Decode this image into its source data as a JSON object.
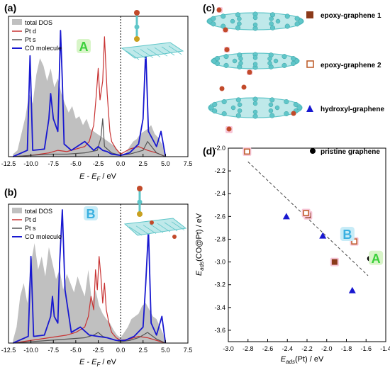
{
  "chart_data": [
    {
      "type": "area",
      "panel": "(a)",
      "xlabel_main": "E - E",
      "xlabel_sub": "F",
      "xlabel_unit": " / eV",
      "xlim": [
        -12.5,
        7.5
      ],
      "x_ticks": [
        "-12.5",
        "-10.0",
        "-7.5",
        "-5.0",
        "-2.5",
        "0.0",
        "2.5",
        "5.0",
        "7.5"
      ],
      "x_tick_values": [
        -12.5,
        -10.0,
        -7.5,
        -5.0,
        -2.5,
        0.0,
        2.5,
        5.0,
        7.5
      ],
      "fermi_level": 0.0,
      "system_label": "A",
      "legend": [
        "total DOS",
        "Pt d",
        "Pt s",
        "CO molecule"
      ],
      "series": [
        {
          "name": "total DOS",
          "color": "#c0c0c0",
          "fill": true,
          "x": [
            -12.0,
            -11.5,
            -11.0,
            -10.6,
            -10.2,
            -9.8,
            -9.4,
            -9.0,
            -8.6,
            -8.2,
            -7.8,
            -7.4,
            -7.0,
            -6.6,
            -6.2,
            -5.8,
            -5.4,
            -5.0,
            -4.6,
            -4.2,
            -3.8,
            -3.4,
            -3.0,
            -2.6,
            -2.2,
            -1.8,
            -1.4,
            -1.0,
            -0.6,
            -0.2,
            0.2,
            0.6,
            1.0,
            1.4,
            1.8,
            2.2,
            2.6,
            3.0,
            3.4,
            3.8,
            4.2,
            4.6,
            5.0
          ],
          "values": [
            0.02,
            0.05,
            0.2,
            0.32,
            0.5,
            0.42,
            0.65,
            0.78,
            0.72,
            0.6,
            0.7,
            0.55,
            0.62,
            0.5,
            0.42,
            0.35,
            0.4,
            0.3,
            0.32,
            0.25,
            0.3,
            0.22,
            0.2,
            0.18,
            0.16,
            0.14,
            0.12,
            0.1,
            0.08,
            0.04,
            0.02,
            0.03,
            0.08,
            0.12,
            0.14,
            0.18,
            0.2,
            0.22,
            0.25,
            0.18,
            0.15,
            0.1,
            0.02
          ]
        },
        {
          "name": "Pt d",
          "color": "#c83232",
          "x": [
            -12.0,
            -10.0,
            -8.0,
            -7.0,
            -6.0,
            -5.0,
            -4.0,
            -3.5,
            -3.0,
            -2.7,
            -2.5,
            -2.3,
            -2.0,
            -1.8,
            -1.5,
            -1.2,
            -1.0,
            -0.5,
            0.0,
            0.5,
            1.0,
            2.0,
            3.0,
            4.0,
            5.0
          ],
          "values": [
            0.0,
            0.01,
            0.03,
            0.05,
            0.04,
            0.06,
            0.08,
            0.12,
            0.25,
            0.5,
            0.7,
            0.45,
            0.6,
            0.95,
            0.5,
            0.2,
            0.12,
            0.06,
            0.02,
            0.04,
            0.06,
            0.08,
            0.05,
            0.03,
            0.0
          ]
        },
        {
          "name": "Pt s",
          "color": "#555555",
          "x": [
            -12.0,
            -10.0,
            -8.0,
            -6.0,
            -4.0,
            -2.6,
            -2.2,
            -2.0,
            -1.8,
            -1.0,
            0.0,
            1.0,
            2.5,
            3.0,
            4.0,
            5.0
          ],
          "values": [
            0.0,
            0.01,
            0.02,
            0.02,
            0.03,
            0.05,
            0.15,
            0.3,
            0.08,
            0.03,
            0.01,
            0.02,
            0.05,
            0.12,
            0.03,
            0.0
          ]
        },
        {
          "name": "CO molecule",
          "color": "#1818d0",
          "x": [
            -12.0,
            -10.4,
            -10.1,
            -9.8,
            -8.5,
            -8.0,
            -7.8,
            -7.5,
            -7.0,
            -6.7,
            -6.5,
            -6.3,
            -5.5,
            -4.0,
            -3.0,
            -2.5,
            -2.0,
            -1.5,
            -1.0,
            0.0,
            1.0,
            2.0,
            2.5,
            2.8,
            3.1,
            4.0,
            4.5,
            5.0
          ],
          "values": [
            0.0,
            0.05,
            0.8,
            0.05,
            0.06,
            0.3,
            0.5,
            0.3,
            0.2,
            1.0,
            0.6,
            0.1,
            0.05,
            0.12,
            0.05,
            0.08,
            0.05,
            0.04,
            0.02,
            0.01,
            0.03,
            0.1,
            0.3,
            0.85,
            0.2,
            0.08,
            0.2,
            0.0
          ]
        }
      ]
    },
    {
      "type": "area",
      "panel": "(b)",
      "xlabel_main": "E - E",
      "xlabel_sub": "F",
      "xlabel_unit": " / eV",
      "xlim": [
        -12.5,
        7.5
      ],
      "x_ticks": [
        "-12.5",
        "-10.0",
        "-7.5",
        "-5.0",
        "-2.5",
        "0.0",
        "2.5",
        "5.0",
        "7.5"
      ],
      "x_tick_values": [
        -12.5,
        -10.0,
        -7.5,
        -5.0,
        -2.5,
        0.0,
        2.5,
        5.0,
        7.5
      ],
      "fermi_level": 0.0,
      "system_label": "B",
      "legend": [
        "total DOS",
        "Pt d",
        "Pt s",
        "CO molecule"
      ],
      "series": [
        {
          "name": "total DOS",
          "color": "#c0c0c0",
          "fill": true,
          "x": [
            -12.0,
            -11.6,
            -11.2,
            -10.8,
            -10.4,
            -10.0,
            -9.6,
            -9.2,
            -8.8,
            -8.4,
            -8.0,
            -7.6,
            -7.2,
            -6.8,
            -6.4,
            -6.0,
            -5.6,
            -5.2,
            -4.8,
            -4.4,
            -4.0,
            -3.6,
            -3.2,
            -2.8,
            -2.4,
            -2.0,
            -1.6,
            -1.2,
            -0.8,
            -0.4,
            0.0,
            0.4,
            0.8,
            1.2,
            1.6,
            2.0,
            2.4,
            2.8,
            3.2,
            3.6,
            4.0,
            4.4,
            4.8,
            5.0
          ],
          "values": [
            0.02,
            0.12,
            0.35,
            0.45,
            0.3,
            0.6,
            0.75,
            0.55,
            0.65,
            0.5,
            0.72,
            0.6,
            0.48,
            0.55,
            0.4,
            0.52,
            0.45,
            0.38,
            0.5,
            0.42,
            0.35,
            0.55,
            0.3,
            0.4,
            0.28,
            0.22,
            0.18,
            0.15,
            0.1,
            0.06,
            0.04,
            0.08,
            0.12,
            0.18,
            0.2,
            0.22,
            0.28,
            0.3,
            0.25,
            0.2,
            0.18,
            0.12,
            0.06,
            0.02
          ]
        },
        {
          "name": "Pt d",
          "color": "#c83232",
          "x": [
            -12.0,
            -10.0,
            -8.0,
            -6.0,
            -5.0,
            -4.0,
            -3.6,
            -3.3,
            -3.0,
            -2.8,
            -2.6,
            -2.4,
            -2.2,
            -2.0,
            -1.8,
            -1.6,
            -1.3,
            -1.0,
            -0.5,
            0.0,
            1.0,
            2.0,
            3.0,
            4.0,
            5.0
          ],
          "values": [
            0.0,
            0.02,
            0.04,
            0.06,
            0.08,
            0.12,
            0.2,
            0.35,
            0.25,
            0.55,
            0.4,
            0.65,
            0.5,
            0.3,
            0.45,
            0.25,
            0.15,
            0.08,
            0.04,
            0.02,
            0.03,
            0.05,
            0.04,
            0.02,
            0.0
          ]
        },
        {
          "name": "Pt s",
          "color": "#555555",
          "x": [
            -12.0,
            -10.0,
            -8.0,
            -6.0,
            -4.0,
            -3.0,
            -2.5,
            -2.0,
            -1.0,
            0.0,
            1.0,
            2.0,
            3.0,
            4.0,
            5.0
          ],
          "values": [
            0.0,
            0.01,
            0.02,
            0.03,
            0.04,
            0.06,
            0.08,
            0.05,
            0.03,
            0.01,
            0.02,
            0.04,
            0.08,
            0.03,
            0.0
          ]
        },
        {
          "name": "CO molecule",
          "color": "#1818d0",
          "x": [
            -12.0,
            -10.3,
            -10.0,
            -9.7,
            -8.5,
            -7.8,
            -7.6,
            -7.4,
            -7.0,
            -6.8,
            -6.5,
            -6.2,
            -5.5,
            -4.5,
            -3.5,
            -2.5,
            -1.5,
            -0.5,
            0.5,
            1.5,
            2.5,
            2.8,
            3.1,
            3.4,
            4.0,
            4.6,
            5.0
          ],
          "values": [
            0.0,
            0.05,
            0.65,
            0.05,
            0.06,
            0.2,
            0.35,
            0.2,
            0.15,
            0.6,
            1.0,
            0.4,
            0.08,
            0.12,
            0.06,
            0.05,
            0.04,
            0.02,
            0.02,
            0.05,
            0.12,
            0.45,
            0.85,
            0.15,
            0.06,
            0.2,
            0.0
          ]
        }
      ]
    },
    {
      "type": "scatter",
      "panel": "(d)",
      "xlabel_main": "E",
      "xlabel_sub": "ads",
      "xlabel_unit": "(Pt) / eV",
      "ylabel_main": "E",
      "ylabel_sub": "ads",
      "ylabel_unit": "(CO@Pt) / eV",
      "xlim": [
        -3.0,
        -1.4
      ],
      "ylim": [
        -3.7,
        -2.0
      ],
      "x_ticks": [
        "-3.0",
        "-2.8",
        "-2.6",
        "-2.4",
        "-2.2",
        "-2.0",
        "-1.8",
        "-1.6",
        "-1.4"
      ],
      "x_tick_values": [
        -3.0,
        -2.8,
        -2.6,
        -2.4,
        -2.2,
        -2.0,
        -1.8,
        -1.6,
        -1.4
      ],
      "y_ticks": [
        "-2.0",
        "-2.2",
        "-2.4",
        "-2.6",
        "-2.8",
        "-3.0",
        "-3.2",
        "-3.4",
        "-3.6"
      ],
      "y_tick_values": [
        -2.0,
        -2.2,
        -2.4,
        -2.6,
        -2.8,
        -3.0,
        -3.2,
        -3.4,
        -3.6
      ],
      "trend_line": {
        "x": [
          -2.8,
          -1.58
        ],
        "y": [
          -2.12,
          -3.12
        ]
      },
      "legend_pristine": "pristine graphene",
      "annotations": [
        {
          "text": "A",
          "x": -1.5,
          "y": -2.97,
          "color": "#3ad03a"
        },
        {
          "text": "B",
          "x": -1.79,
          "y": -2.76,
          "color": "#3ab0e0"
        }
      ],
      "series": [
        {
          "name": "epoxy-graphene 1",
          "marker": "filled-square",
          "color": "#8b3a1a",
          "x": [
            -2.19,
            -1.92
          ],
          "y": [
            -2.59,
            -3.0
          ]
        },
        {
          "name": "epoxy-graphene 2",
          "marker": "open-square",
          "color": "#c06030",
          "x": [
            -2.81,
            -2.21,
            -1.72
          ],
          "y": [
            -2.03,
            -2.57,
            -2.82
          ]
        },
        {
          "name": "hydroxyl-graphene",
          "marker": "triangle",
          "color": "#1818d0",
          "x": [
            -2.41,
            -2.04,
            -1.74
          ],
          "y": [
            -2.6,
            -2.77,
            -3.25
          ]
        },
        {
          "name": "pristine graphene",
          "marker": "circle",
          "color": "#000000",
          "x": [
            -1.56
          ],
          "y": [
            -2.97
          ]
        }
      ]
    }
  ],
  "panel_c": {
    "label": "(c)",
    "structures": [
      {
        "name": "epoxy-graphene 1",
        "marker_color": "#8b3a1a",
        "marker": "filled-square"
      },
      {
        "name": "epoxy-graphene 2",
        "marker_color": "#c06030",
        "marker": "open-square"
      },
      {
        "name": "hydroxyl-graphene",
        "marker_color": "#1818d0",
        "marker": "triangle"
      }
    ]
  },
  "colors": {
    "atom_c": "#5fc6c9",
    "atom_o": "#c24a2a",
    "atom_pt": "#c8a020",
    "highlight": "#f7c6d8"
  }
}
